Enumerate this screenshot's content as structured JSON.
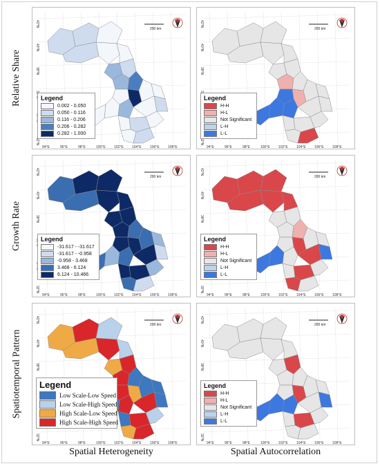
{
  "rows": [
    {
      "label": "Relative Share"
    },
    {
      "label": "Growth Rate"
    },
    {
      "label": "Spatiotemporal Pattern"
    }
  ],
  "columns": [
    {
      "label": "Spatial Heterogeneity"
    },
    {
      "label": "Spatial Autocorrelation"
    }
  ],
  "map": {
    "scale_bar": "200 km",
    "lon_ticks": [
      "94°E",
      "96°E",
      "98°E",
      "100°E",
      "102°E",
      "104°E",
      "106°E",
      "108°E"
    ],
    "lat_ticks": [
      "42°N",
      "40°N",
      "38°N",
      "36°N",
      "34°N",
      "32°N"
    ],
    "north_arrow": "north-arrow-icon"
  },
  "legends": {
    "relative_share": {
      "title": "Legend",
      "items": [
        {
          "label": "0.002 - 0.050",
          "color": "#f3f6fb"
        },
        {
          "label": "0.050 - 0.116",
          "color": "#cfdcef"
        },
        {
          "label": "0.116 - 0.206",
          "color": "#9ab8dc"
        },
        {
          "label": "0.206 - 0.282",
          "color": "#4a7ec0"
        },
        {
          "label": "0.282 - 1.000",
          "color": "#0d2a66"
        }
      ]
    },
    "growth_rate": {
      "title": "Legend",
      "items": [
        {
          "label": "-31.617 - -31.617",
          "color": "#f3f6fb"
        },
        {
          "label": "-31.617 - -0.958",
          "color": "#cfdcef"
        },
        {
          "label": "-0.958 - 3.468",
          "color": "#9ab8dc"
        },
        {
          "label": "3.468 - 6.124",
          "color": "#3a6eb0"
        },
        {
          "label": "6.124 - 10.466",
          "color": "#0d2a66"
        }
      ]
    },
    "pattern": {
      "title": "Legend",
      "items": [
        {
          "label": "Low Scale-Low Speed",
          "color": "#3d78c0"
        },
        {
          "label": "Low Scale-High Speed",
          "color": "#b9d1ea"
        },
        {
          "label": "High Scale-Low Speed",
          "color": "#f0aa45"
        },
        {
          "label": "High Scale-High Speed",
          "color": "#d9262b"
        }
      ]
    },
    "lisa": {
      "title": "Legend",
      "items": [
        {
          "label": "H-H",
          "color": "#d9474b"
        },
        {
          "label": "H-L",
          "color": "#efb0b0"
        },
        {
          "label": "Not Significant",
          "color": "#e6e6e6"
        },
        {
          "label": "L-H",
          "color": "#bcd3ee"
        },
        {
          "label": "L-L",
          "color": "#3d78e0"
        }
      ]
    }
  },
  "colors": {
    "outline": "#8c8c8c",
    "not_significant": "#e6e6e6",
    "background": "#ffffff"
  }
}
